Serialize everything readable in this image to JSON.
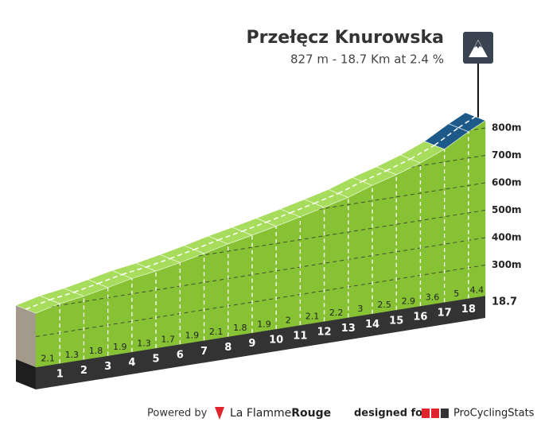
{
  "chart_data": {
    "type": "climb-profile",
    "title": "Przełęcz Knurowska",
    "subtitle": "827 m - 18.7 Km at 2.4 %",
    "x": [
      1,
      2,
      3,
      4,
      5,
      6,
      7,
      8,
      9,
      10,
      11,
      12,
      13,
      14,
      15,
      16,
      17,
      18,
      18.7
    ],
    "values": [
      2.1,
      1.3,
      1.8,
      1.9,
      1.3,
      1.7,
      1.9,
      2.1,
      1.8,
      1.9,
      2.0,
      2.1,
      2.2,
      3.0,
      2.5,
      2.9,
      3.6,
      5.0,
      4.4
    ],
    "ylim": [
      200,
      827
    ],
    "yticks": [
      {
        "value": 300,
        "label": "300m"
      },
      {
        "value": 400,
        "label": "400m"
      },
      {
        "value": 500,
        "label": "500m"
      },
      {
        "value": 600,
        "label": "600m"
      },
      {
        "value": 700,
        "label": "700m"
      },
      {
        "value": 800,
        "label": "800m"
      }
    ],
    "grid": true,
    "color": "#86c233",
    "top_color": "#a8dc5c",
    "summit_color": "#1d5a8a"
  },
  "footer": {
    "powered_by": "Powered by",
    "brand_a": "La Flamme",
    "brand_b": "Rouge",
    "designed_for": "designed for",
    "pcs": "ProCyclingStats"
  }
}
